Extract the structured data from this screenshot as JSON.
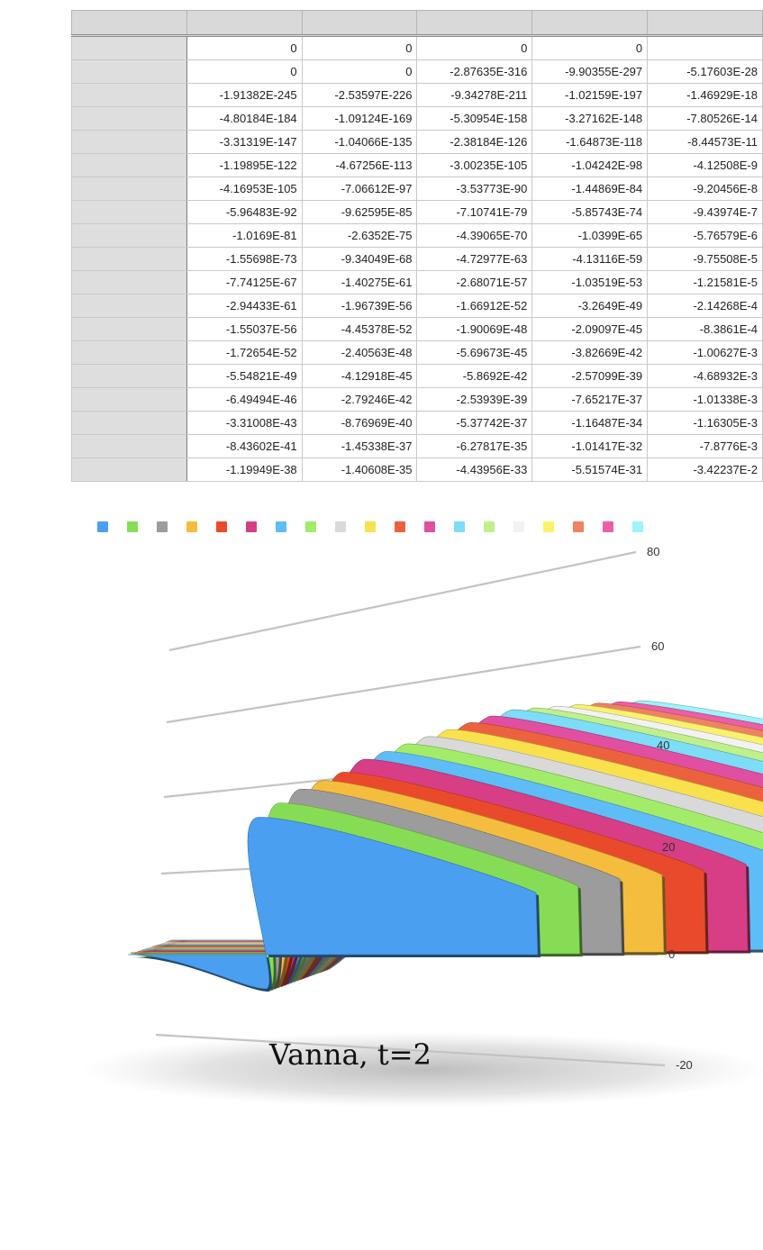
{
  "spreadsheet": {
    "column_headers": [
      "",
      "",
      "",
      "",
      "",
      ""
    ],
    "rows": [
      [
        "0",
        "0",
        "0",
        "0",
        ""
      ],
      [
        "0",
        "0",
        "-2.87635E-316",
        "-9.90355E-297",
        "-5.17603E-28"
      ],
      [
        "-1.91382E-245",
        "-2.53597E-226",
        "-9.34278E-211",
        "-1.02159E-197",
        "-1.46929E-18"
      ],
      [
        "-4.80184E-184",
        "-1.09124E-169",
        "-5.30954E-158",
        "-3.27162E-148",
        "-7.80526E-14"
      ],
      [
        "-3.31319E-147",
        "-1.04066E-135",
        "-2.38184E-126",
        "-1.64873E-118",
        "-8.44573E-11"
      ],
      [
        "-1.19895E-122",
        "-4.67256E-113",
        "-3.00235E-105",
        "-1.04242E-98",
        "-4.12508E-9"
      ],
      [
        "-4.16953E-105",
        "-7.06612E-97",
        "-3.53773E-90",
        "-1.44869E-84",
        "-9.20456E-8"
      ],
      [
        "-5.96483E-92",
        "-9.62595E-85",
        "-7.10741E-79",
        "-5.85743E-74",
        "-9.43974E-7"
      ],
      [
        "-1.0169E-81",
        "-2.6352E-75",
        "-4.39065E-70",
        "-1.0399E-65",
        "-5.76579E-6"
      ],
      [
        "-1.55698E-73",
        "-9.34049E-68",
        "-4.72977E-63",
        "-4.13116E-59",
        "-9.75508E-5"
      ],
      [
        "-7.74125E-67",
        "-1.40275E-61",
        "-2.68071E-57",
        "-1.03519E-53",
        "-1.21581E-5"
      ],
      [
        "-2.94433E-61",
        "-1.96739E-56",
        "-1.66912E-52",
        "-3.2649E-49",
        "-2.14268E-4"
      ],
      [
        "-1.55037E-56",
        "-4.45378E-52",
        "-1.90069E-48",
        "-2.09097E-45",
        "-8.3861E-4"
      ],
      [
        "-1.72654E-52",
        "-2.40563E-48",
        "-5.69673E-45",
        "-3.82669E-42",
        "-1.00627E-3"
      ],
      [
        "-5.54821E-49",
        "-4.12918E-45",
        "-5.8692E-42",
        "-2.57099E-39",
        "-4.68932E-3"
      ],
      [
        "-6.49494E-46",
        "-2.79246E-42",
        "-2.53939E-39",
        "-7.65217E-37",
        "-1.01338E-3"
      ],
      [
        "-3.31008E-43",
        "-8.76969E-40",
        "-5.37742E-37",
        "-1.16487E-34",
        "-1.16305E-3"
      ],
      [
        "-8.43602E-41",
        "-1.45338E-37",
        "-6.27817E-35",
        "-1.01417E-32",
        "-7.8776E-3"
      ],
      [
        "-1.19949E-38",
        "-1.40608E-35",
        "-4.43956E-33",
        "-5.51574E-31",
        "-3.42237E-2"
      ]
    ]
  },
  "chart_data": {
    "type": "area",
    "title": "Vanna, t=2",
    "xlabel": "",
    "ylabel": "",
    "ylim": [
      -20,
      80
    ],
    "yticks": [
      "80",
      "60",
      "40",
      "20",
      "0",
      "-20"
    ],
    "grid": true,
    "legend": "top",
    "series": [
      {
        "color": "#4a9ff0",
        "peak": 27
      },
      {
        "color": "#86dd55",
        "peak": 30
      },
      {
        "color": "#9c9c9c",
        "peak": 33
      },
      {
        "color": "#f5bd3e",
        "peak": 35
      },
      {
        "color": "#ea4a2c",
        "peak": 37
      },
      {
        "color": "#d73e86",
        "peak": 40
      },
      {
        "color": "#5ebcf6",
        "peak": 42
      },
      {
        "color": "#a2ec6a",
        "peak": 44
      },
      {
        "color": "#d9d9d9",
        "peak": 46
      },
      {
        "color": "#f9e14d",
        "peak": 48
      },
      {
        "color": "#ec623f",
        "peak": 50
      },
      {
        "color": "#e04fa2",
        "peak": 52
      },
      {
        "color": "#7ddcf6",
        "peak": 54
      },
      {
        "color": "#bff08a",
        "peak": 55
      },
      {
        "color": "#f2f2f2",
        "peak": 56
      },
      {
        "color": "#fbf26c",
        "peak": 57
      },
      {
        "color": "#ee8262",
        "peak": 58
      },
      {
        "color": "#ec5ea6",
        "peak": 59
      },
      {
        "color": "#9ef3fc",
        "peak": 60
      }
    ]
  }
}
